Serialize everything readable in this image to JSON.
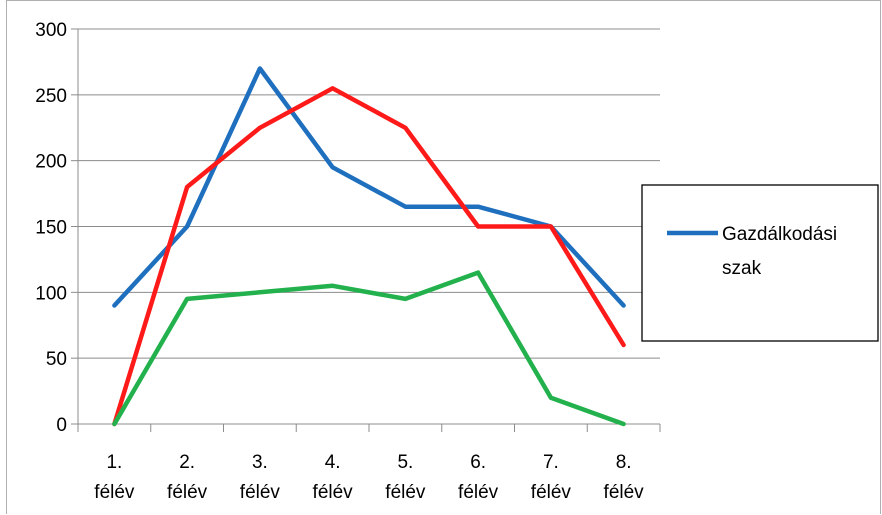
{
  "chart_data": {
    "type": "line",
    "categories": [
      "1. félév",
      "2. félév",
      "3. félév",
      "4. félév",
      "5. félév",
      "6. félév",
      "7. félév",
      "8. félév"
    ],
    "category_lines": [
      [
        "1.",
        "félév"
      ],
      [
        "2.",
        "félév"
      ],
      [
        "3.",
        "félév"
      ],
      [
        "4.",
        "félév"
      ],
      [
        "5.",
        "félév"
      ],
      [
        "6.",
        "félév"
      ],
      [
        "7.",
        "félév"
      ],
      [
        "8.",
        "félév"
      ]
    ],
    "yticks": [
      "0",
      "50",
      "100",
      "150",
      "200",
      "250",
      "300"
    ],
    "ylim": [
      0,
      300
    ],
    "grid": true,
    "legend_placement": "right",
    "series": [
      {
        "name": "Gazdálkodási szak",
        "color": "#1f6fbf",
        "values": [
          90,
          150,
          270,
          195,
          165,
          165,
          150,
          90
        ]
      },
      {
        "color": "#ff1a1a",
        "values": [
          0,
          180,
          225,
          255,
          225,
          150,
          150,
          60
        ]
      },
      {
        "color": "#22b14c",
        "values": [
          0,
          95,
          100,
          105,
          95,
          115,
          20,
          0
        ]
      }
    ],
    "legend": {
      "lines": [
        "Gazdálkodási",
        "szak"
      ]
    }
  }
}
